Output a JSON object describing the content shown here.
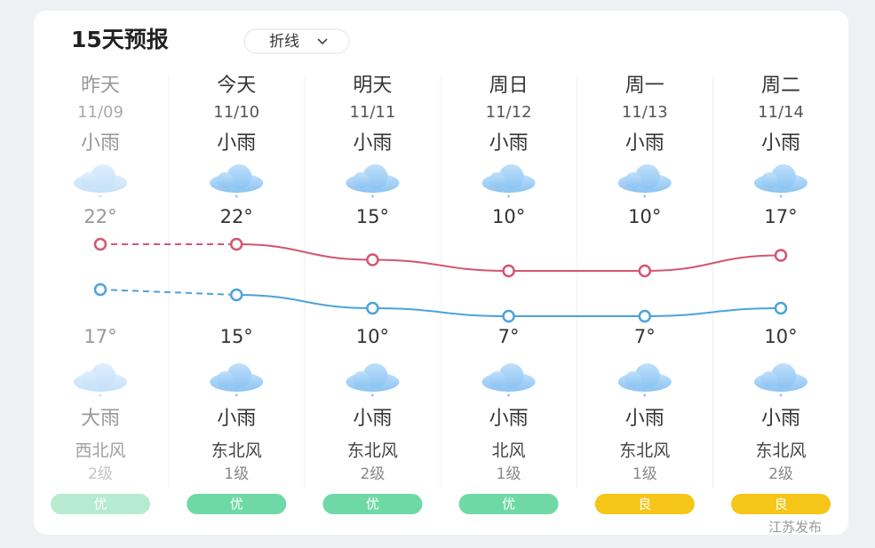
{
  "header": {
    "title": "15天预报",
    "mode": "折线"
  },
  "days": [
    {
      "day": "昨天",
      "date": "11/09",
      "day_weather": "小雨",
      "high": {
        "value": 22,
        "label": "22°"
      },
      "low": {
        "value": 17,
        "label": "17°"
      },
      "night_weather": "大雨",
      "wind": "西北风",
      "level": "2级",
      "aqi": "优",
      "aqi_color": "#6fd9a5"
    },
    {
      "day": "今天",
      "date": "11/10",
      "day_weather": "小雨",
      "high": {
        "value": 22,
        "label": "22°"
      },
      "low": {
        "value": 15,
        "label": "15°"
      },
      "night_weather": "小雨",
      "wind": "东北风",
      "level": "1级",
      "aqi": "优",
      "aqi_color": "#6fd9a5"
    },
    {
      "day": "明天",
      "date": "11/11",
      "day_weather": "小雨",
      "high": {
        "value": 15,
        "label": "15°"
      },
      "low": {
        "value": 10,
        "label": "10°"
      },
      "night_weather": "小雨",
      "wind": "东北风",
      "level": "2级",
      "aqi": "优",
      "aqi_color": "#6fd9a5"
    },
    {
      "day": "周日",
      "date": "11/12",
      "day_weather": "小雨",
      "high": {
        "value": 10,
        "label": "10°"
      },
      "low": {
        "value": 7,
        "label": "7°"
      },
      "night_weather": "小雨",
      "wind": "北风",
      "level": "1级",
      "aqi": "优",
      "aqi_color": "#6fd9a5"
    },
    {
      "day": "周一",
      "date": "11/13",
      "day_weather": "小雨",
      "high": {
        "value": 10,
        "label": "10°"
      },
      "low": {
        "value": 7,
        "label": "7°"
      },
      "night_weather": "小雨",
      "wind": "东北风",
      "level": "1级",
      "aqi": "良",
      "aqi_color": "#f5c518"
    },
    {
      "day": "周二",
      "date": "11/14",
      "day_weather": "小雨",
      "high": {
        "value": 17,
        "label": "17°"
      },
      "low": {
        "value": 10,
        "label": "10°"
      },
      "night_weather": "小雨",
      "wind": "东北风",
      "level": "2级",
      "aqi": "良",
      "aqi_color": "#f5c518"
    }
  ],
  "watermark": "江苏发布"
}
